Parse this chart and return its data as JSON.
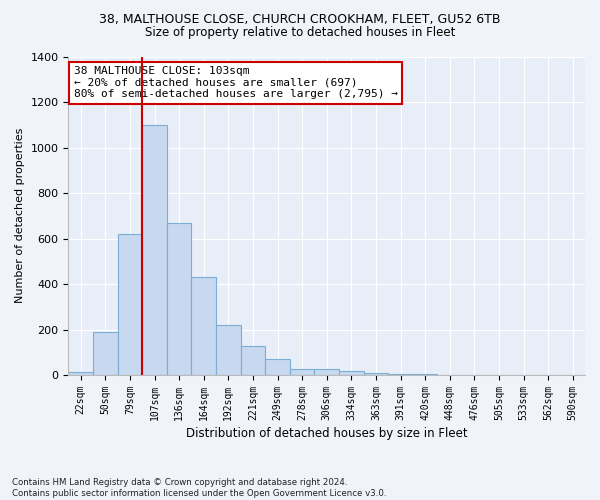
{
  "title1": "38, MALTHOUSE CLOSE, CHURCH CROOKHAM, FLEET, GU52 6TB",
  "title2": "Size of property relative to detached houses in Fleet",
  "xlabel": "Distribution of detached houses by size in Fleet",
  "ylabel": "Number of detached properties",
  "categories": [
    "22sqm",
    "50sqm",
    "79sqm",
    "107sqm",
    "136sqm",
    "164sqm",
    "192sqm",
    "221sqm",
    "249sqm",
    "278sqm",
    "306sqm",
    "334sqm",
    "363sqm",
    "391sqm",
    "420sqm",
    "448sqm",
    "476sqm",
    "505sqm",
    "533sqm",
    "562sqm",
    "590sqm"
  ],
  "bar_heights": [
    15,
    190,
    620,
    1100,
    670,
    430,
    220,
    130,
    70,
    25,
    25,
    20,
    10,
    5,
    5,
    0,
    0,
    0,
    0,
    0,
    0
  ],
  "bar_color": "#c8d8ee",
  "bar_edge_color": "#7aafd4",
  "vline_color": "#cc0000",
  "annotation_text": "38 MALTHOUSE CLOSE: 103sqm\n← 20% of detached houses are smaller (697)\n80% of semi-detached houses are larger (2,795) →",
  "annotation_box_color": "#ffffff",
  "annotation_box_edge": "#cc0000",
  "ylim": [
    0,
    1400
  ],
  "yticks": [
    0,
    200,
    400,
    600,
    800,
    1000,
    1200,
    1400
  ],
  "footer": "Contains HM Land Registry data © Crown copyright and database right 2024.\nContains public sector information licensed under the Open Government Licence v3.0.",
  "bg_color": "#f0f4fa",
  "plot_bg_color": "#e8eef8",
  "grid_color": "#ffffff"
}
